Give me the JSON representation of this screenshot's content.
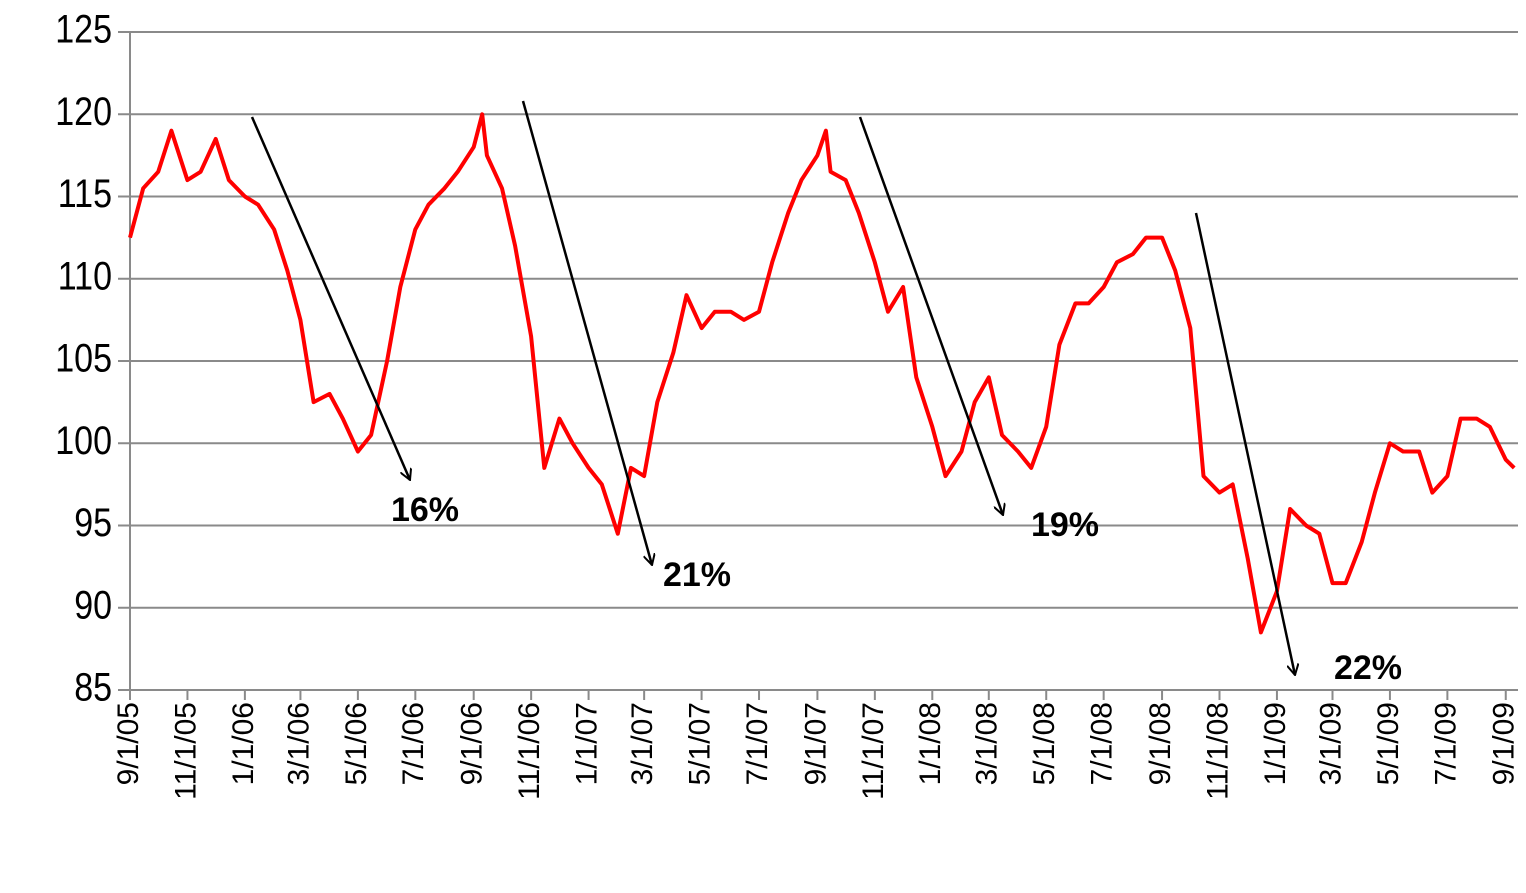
{
  "chart_data": {
    "type": "line",
    "x": [
      "9/1/05",
      "9/15/05",
      "10/1/05",
      "10/15/05",
      "11/1/05",
      "11/15/05",
      "12/1/05",
      "12/15/05",
      "1/1/06",
      "1/15/06",
      "2/1/06",
      "2/15/06",
      "3/1/06",
      "3/15/06",
      "4/1/06",
      "4/15/06",
      "5/1/06",
      "5/15/06",
      "6/1/06",
      "6/15/06",
      "7/1/06",
      "7/15/06",
      "8/1/06",
      "8/15/06",
      "9/1/06",
      "9/10/06",
      "9/15/06",
      "10/1/06",
      "10/15/06",
      "11/1/06",
      "11/15/06",
      "12/1/06",
      "12/15/06",
      "1/1/07",
      "1/15/07",
      "2/1/07",
      "2/15/07",
      "3/1/07",
      "3/15/07",
      "4/1/07",
      "4/15/07",
      "5/1/07",
      "5/15/07",
      "6/1/07",
      "6/15/07",
      "7/1/07",
      "7/15/07",
      "8/1/07",
      "8/15/07",
      "9/1/07",
      "9/10/07",
      "9/15/07",
      "10/1/07",
      "10/15/07",
      "11/1/07",
      "11/15/07",
      "12/1/07",
      "12/15/07",
      "1/1/08",
      "1/15/08",
      "2/1/08",
      "2/15/08",
      "3/1/08",
      "3/15/08",
      "4/1/08",
      "4/15/08",
      "5/1/08",
      "5/15/08",
      "6/1/08",
      "6/15/08",
      "7/1/08",
      "7/15/08",
      "8/1/08",
      "8/15/08",
      "9/1/08",
      "9/15/08",
      "10/1/08",
      "10/15/08",
      "11/1/08",
      "11/15/08",
      "12/1/08",
      "12/15/08",
      "1/1/09",
      "1/15/09",
      "2/1/09",
      "2/15/09",
      "3/1/09",
      "3/15/09",
      "4/1/09",
      "4/15/09",
      "5/1/09",
      "5/15/09",
      "6/1/09",
      "6/15/09",
      "7/1/09",
      "7/15/09",
      "8/1/09",
      "8/15/09",
      "9/1/09",
      "9/10/09"
    ],
    "series": [
      {
        "color": "#ff0000",
        "values": [
          112.5,
          115.5,
          116.5,
          119,
          116,
          116.5,
          118.5,
          116,
          115,
          114.5,
          113,
          110.5,
          107.5,
          102.5,
          103,
          101.5,
          99.5,
          100.5,
          105,
          109.5,
          113,
          114.5,
          115.5,
          116.5,
          118,
          120,
          117.5,
          115.5,
          112,
          106.5,
          98.5,
          101.5,
          100,
          98.5,
          97.5,
          94.5,
          98.5,
          98,
          102.5,
          105.5,
          109,
          107,
          108,
          108,
          107.5,
          108,
          111,
          114,
          116,
          117.5,
          119,
          116.5,
          116,
          114,
          111,
          108,
          109.5,
          104,
          101,
          98,
          99.5,
          102.5,
          104,
          100.5,
          99.5,
          98.5,
          101,
          106,
          108.5,
          108.5,
          109.5,
          111,
          111.5,
          112.5,
          112.5,
          110.5,
          107,
          98,
          97,
          97.5,
          93,
          88.5,
          91,
          96,
          95,
          94.5,
          91.5,
          91.5,
          94,
          97,
          100,
          99.5,
          99.5,
          97,
          98,
          101.5,
          101.5,
          101,
          99,
          98.5
        ]
      }
    ],
    "xlim": [
      "9/1/05",
      "9/14/09"
    ],
    "xticks": [
      "9/1/05",
      "11/1/05",
      "1/1/06",
      "3/1/06",
      "5/1/06",
      "7/1/06",
      "9/1/06",
      "11/1/06",
      "1/1/07",
      "3/1/07",
      "5/1/07",
      "7/1/07",
      "9/1/07",
      "11/1/07",
      "1/1/08",
      "3/1/08",
      "5/1/08",
      "7/1/08",
      "9/1/08",
      "11/1/08",
      "1/1/09",
      "3/1/09",
      "5/1/09",
      "7/1/09",
      "9/1/09"
    ],
    "ylim": [
      85,
      125
    ],
    "yticks": [
      85,
      90,
      95,
      100,
      105,
      110,
      115,
      120,
      125
    ],
    "grid": true,
    "annotations": [
      "16%",
      "21%",
      "19%",
      "22%"
    ]
  }
}
